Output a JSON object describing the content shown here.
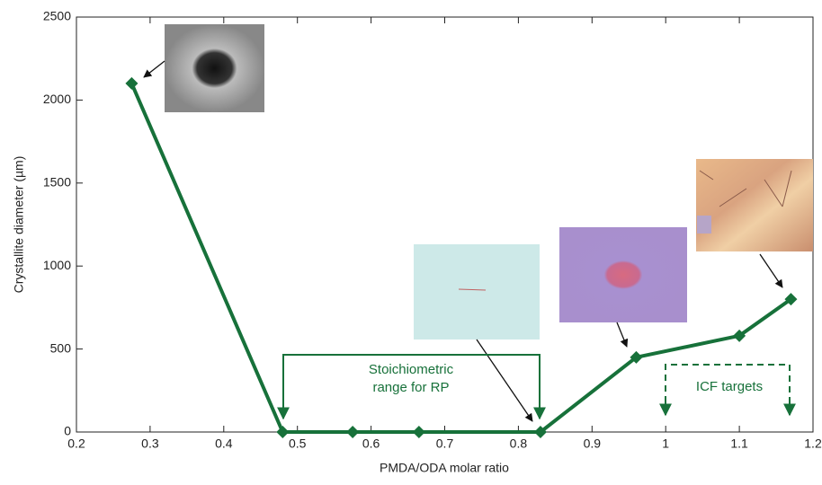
{
  "chart_data": {
    "type": "line",
    "x_label": "PMDA/ODA molar ratio",
    "y_label": "Crystallite diameter (µm)",
    "x": [
      0.275,
      0.48,
      0.575,
      0.665,
      0.83,
      0.96,
      1.1,
      1.17
    ],
    "values": [
      2100,
      0,
      0,
      0,
      0,
      450,
      580,
      800
    ],
    "color": "#17713a",
    "xlim": [
      0.2,
      1.2
    ],
    "xticks": [
      0.2,
      0.3,
      0.4,
      0.5,
      0.6,
      0.7,
      0.8,
      0.9,
      1,
      1.1,
      1.2
    ],
    "ylim": [
      0,
      2500
    ],
    "yticks": [
      0,
      500,
      1000,
      1500,
      2000,
      2500
    ],
    "annotations": [
      "Stoichiometric",
      "range for RP",
      "ICF targets"
    ]
  }
}
